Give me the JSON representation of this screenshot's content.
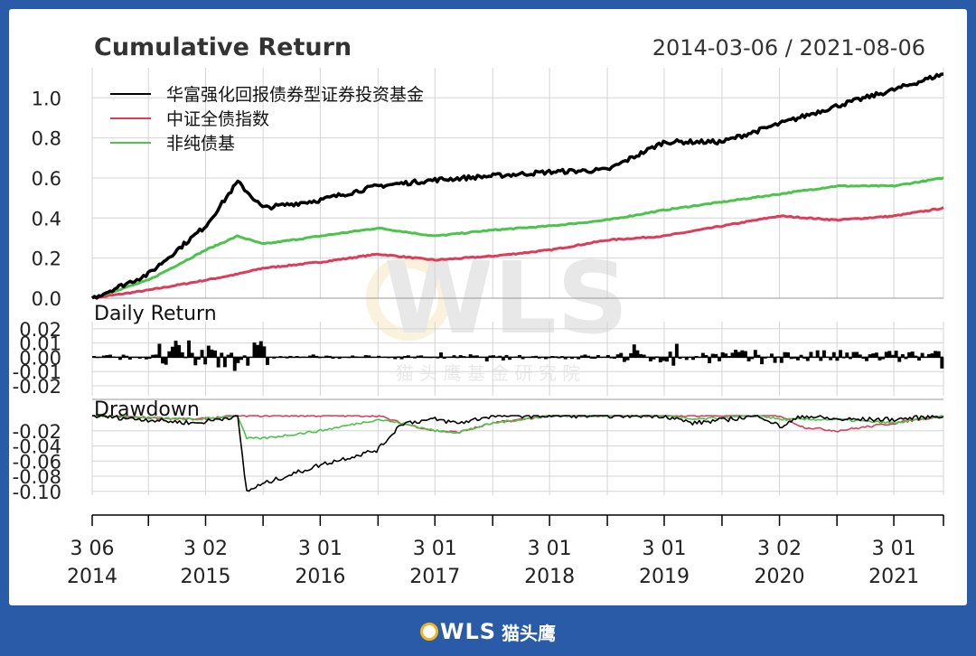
{
  "chart_data": [
    {
      "type": "line",
      "panel": "cumulative_return",
      "title": "Cumulative Return",
      "date_range_label": "2014-03-06 / 2021-08-06",
      "ylim": [
        0.0,
        1.15
      ],
      "yticks": [
        "0.0",
        "0.2",
        "0.4",
        "0.6",
        "0.8",
        "1.0"
      ],
      "legend_position": "top-left",
      "grid": true,
      "x": [
        "2014-03-06",
        "2014-09-01",
        "2015-03-02",
        "2015-06-12",
        "2015-09-01",
        "2016-03-01",
        "2016-09-01",
        "2017-03-01",
        "2017-09-01",
        "2018-03-01",
        "2018-09-01",
        "2019-03-01",
        "2019-09-01",
        "2020-03-02",
        "2020-09-01",
        "2021-03-01",
        "2021-08-06"
      ],
      "series": [
        {
          "name": "华富强化回报债券型证券投资基金",
          "color": "#000000",
          "values": [
            0.0,
            0.12,
            0.36,
            0.58,
            0.45,
            0.49,
            0.56,
            0.59,
            0.61,
            0.63,
            0.64,
            0.78,
            0.78,
            0.87,
            0.96,
            1.04,
            1.12
          ]
        },
        {
          "name": "中证全债指数",
          "color": "#dc3d5a",
          "values": [
            0.0,
            0.04,
            0.09,
            0.12,
            0.15,
            0.18,
            0.22,
            0.19,
            0.21,
            0.24,
            0.29,
            0.31,
            0.36,
            0.41,
            0.39,
            0.41,
            0.45
          ]
        },
        {
          "name": "非纯债基",
          "color": "#4cc44c",
          "values": [
            0.0,
            0.09,
            0.24,
            0.31,
            0.27,
            0.31,
            0.35,
            0.31,
            0.34,
            0.36,
            0.39,
            0.44,
            0.48,
            0.52,
            0.56,
            0.56,
            0.6
          ]
        }
      ]
    },
    {
      "type": "bar",
      "panel": "daily_return",
      "title": "Daily Return",
      "ylim": [
        -0.027,
        0.025
      ],
      "yticks": [
        "0.02",
        "0.01",
        "0.00",
        "-0.01",
        "-0.02"
      ]
    },
    {
      "type": "line",
      "panel": "drawdown",
      "title": "Drawdown",
      "ylim": [
        -0.105,
        0.0
      ],
      "yticks": [
        "-0.02",
        "-0.04",
        "-0.06",
        "-0.08",
        "-0.10"
      ],
      "x": [
        "2014-03-06",
        "2015-02-01",
        "2015-06-12",
        "2015-07-10",
        "2015-09-01",
        "2016-03-01",
        "2016-09-01",
        "2016-11-15",
        "2017-03-01",
        "2017-05-15",
        "2017-09-01",
        "2018-03-01",
        "2019-03-01",
        "2019-06-01",
        "2020-01-01",
        "2020-03-05",
        "2020-05-15",
        "2020-09-01",
        "2021-03-01",
        "2021-08-06"
      ],
      "series": [
        {
          "name": "华富强化回报债券型证券投资基金",
          "color": "#000000",
          "values": [
            0.0,
            -0.01,
            0.0,
            -0.1,
            -0.09,
            -0.065,
            -0.045,
            -0.01,
            -0.005,
            -0.01,
            0.0,
            0.0,
            0.0,
            -0.01,
            0.0,
            -0.015,
            0.0,
            -0.005,
            -0.005,
            0.0
          ]
        },
        {
          "name": "中证全债指数",
          "color": "#dc3d5a",
          "values": [
            0.0,
            -0.005,
            0.0,
            0.0,
            0.0,
            0.0,
            0.0,
            -0.01,
            -0.02,
            -0.022,
            -0.01,
            0.0,
            0.0,
            0.0,
            0.0,
            0.0,
            -0.015,
            -0.02,
            -0.01,
            0.0
          ]
        },
        {
          "name": "非纯债基",
          "color": "#4cc44c",
          "values": [
            0.0,
            -0.005,
            0.0,
            -0.03,
            -0.03,
            -0.02,
            -0.005,
            -0.01,
            -0.02,
            -0.022,
            -0.01,
            0.0,
            0.0,
            -0.005,
            0.0,
            -0.005,
            -0.005,
            -0.005,
            -0.01,
            0.0
          ]
        }
      ]
    }
  ],
  "x_axis": {
    "ticks": [
      {
        "date": "2014-03-06",
        "line1": "3 06",
        "line2": "2014"
      },
      {
        "date": "2014-09-01",
        "line1": "",
        "line2": ""
      },
      {
        "date": "2015-03-02",
        "line1": "3 02",
        "line2": "2015"
      },
      {
        "date": "2015-09-01",
        "line1": "",
        "line2": ""
      },
      {
        "date": "2016-03-01",
        "line1": "3 01",
        "line2": "2016"
      },
      {
        "date": "2016-09-01",
        "line1": "",
        "line2": ""
      },
      {
        "date": "2017-03-01",
        "line1": "3 01",
        "line2": "2017"
      },
      {
        "date": "2017-09-01",
        "line1": "",
        "line2": ""
      },
      {
        "date": "2018-03-01",
        "line1": "3 01",
        "line2": "2018"
      },
      {
        "date": "2018-09-01",
        "line1": "",
        "line2": ""
      },
      {
        "date": "2019-03-01",
        "line1": "3 01",
        "line2": "2019"
      },
      {
        "date": "2019-09-01",
        "line1": "",
        "line2": ""
      },
      {
        "date": "2020-03-02",
        "line1": "3 02",
        "line2": "2020"
      },
      {
        "date": "2020-09-01",
        "line1": "",
        "line2": ""
      },
      {
        "date": "2021-03-01",
        "line1": "3 01",
        "line2": "2021"
      },
      {
        "date": "2021-08-06",
        "line1": "",
        "line2": ""
      }
    ]
  },
  "watermark": {
    "logo": "OWLS",
    "subtitle": "猫 头 鹰 基 金 研 究 院"
  },
  "footer": {
    "logo_text": "WLS",
    "brand_cn": "猫头鹰"
  }
}
